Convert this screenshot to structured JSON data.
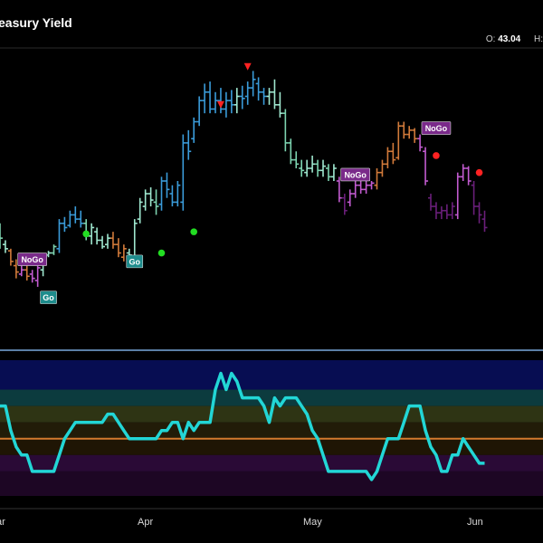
{
  "title": "easury Yield",
  "ohlc": {
    "o_label": "O:",
    "o_value": "43.04",
    "h_label": "H:"
  },
  "colors": {
    "background": "#000000",
    "strong_go": "#3a9bd9",
    "go": "#7dd3b0",
    "weak_go": "#9fe7cf",
    "nogo": "#c25bd0",
    "strong_nogo": "#6a1f7a",
    "amber": "#d17a3a",
    "oscillator": "#22d6d6",
    "zero_line": "#d47a2e",
    "separator": "#5b7fa6",
    "go_dot": "#22dd22",
    "nogo_dot": "#ff2222",
    "badge_go": "#1e8c8c",
    "badge_nogo": "#7a2a8a"
  },
  "chart_data": [
    {
      "type": "ohlc",
      "panel": "price",
      "x_ticks": [
        "ar",
        "Apr",
        "May",
        "Jun"
      ],
      "bars": [
        {
          "h": 51.0,
          "l": 45.0,
          "o": 49.5,
          "c": 47.5,
          "color": "go"
        },
        {
          "h": 47.0,
          "l": 44.0,
          "o": 46.0,
          "c": 45.0,
          "color": "weak_go"
        },
        {
          "h": 45.0,
          "l": 41.0,
          "o": 44.5,
          "c": 42.0,
          "color": "amber"
        },
        {
          "h": 42.5,
          "l": 38.0,
          "o": 41.0,
          "c": 39.5,
          "color": "amber"
        },
        {
          "h": 41.0,
          "l": 38.5,
          "o": 39.0,
          "c": 40.0,
          "color": "nogo"
        },
        {
          "h": 41.5,
          "l": 37.5,
          "o": 40.0,
          "c": 38.5,
          "color": "amber"
        },
        {
          "h": 40.0,
          "l": 37.0,
          "o": 39.0,
          "c": 38.0,
          "color": "nogo"
        },
        {
          "h": 41.0,
          "l": 36.0,
          "o": 37.5,
          "c": 40.5,
          "color": "nogo"
        },
        {
          "h": 43.0,
          "l": 38.5,
          "o": 40.0,
          "c": 42.5,
          "color": "weak_go"
        },
        {
          "h": 44.5,
          "l": 43.0,
          "o": 43.5,
          "c": 44.0,
          "color": "weak_go"
        },
        {
          "h": 46.0,
          "l": 43.5,
          "o": 44.0,
          "c": 45.5,
          "color": "go"
        },
        {
          "h": 52.0,
          "l": 44.0,
          "o": 45.0,
          "c": 51.0,
          "color": "strong_go"
        },
        {
          "h": 52.5,
          "l": 49.0,
          "o": 51.0,
          "c": 50.0,
          "color": "strong_go"
        },
        {
          "h": 54.0,
          "l": 50.0,
          "o": 50.5,
          "c": 53.0,
          "color": "strong_go"
        },
        {
          "h": 55.0,
          "l": 51.0,
          "o": 53.0,
          "c": 52.0,
          "color": "strong_go"
        },
        {
          "h": 54.0,
          "l": 50.0,
          "o": 52.0,
          "c": 51.0,
          "color": "strong_go"
        },
        {
          "h": 52.0,
          "l": 47.0,
          "o": 51.0,
          "c": 48.0,
          "color": "go"
        },
        {
          "h": 51.0,
          "l": 46.0,
          "o": 48.0,
          "c": 50.0,
          "color": "weak_go"
        },
        {
          "h": 50.0,
          "l": 46.0,
          "o": 49.0,
          "c": 47.0,
          "color": "weak_go"
        },
        {
          "h": 48.0,
          "l": 45.0,
          "o": 47.0,
          "c": 45.5,
          "color": "weak_go"
        },
        {
          "h": 48.5,
          "l": 45.0,
          "o": 46.0,
          "c": 47.5,
          "color": "weak_go"
        },
        {
          "h": 49.0,
          "l": 45.0,
          "o": 47.5,
          "c": 46.0,
          "color": "amber"
        },
        {
          "h": 47.5,
          "l": 43.0,
          "o": 46.0,
          "c": 44.0,
          "color": "amber"
        },
        {
          "h": 46.0,
          "l": 42.0,
          "o": 43.0,
          "c": 45.0,
          "color": "amber"
        },
        {
          "h": 45.0,
          "l": 42.5,
          "o": 44.0,
          "c": 43.5,
          "color": "weak_go"
        },
        {
          "h": 52.0,
          "l": 42.0,
          "o": 43.0,
          "c": 51.0,
          "color": "weak_go"
        },
        {
          "h": 57.0,
          "l": 51.0,
          "o": 52.0,
          "c": 56.0,
          "color": "weak_go"
        },
        {
          "h": 59.0,
          "l": 54.0,
          "o": 55.0,
          "c": 58.0,
          "color": "weak_go"
        },
        {
          "h": 59.5,
          "l": 55.0,
          "o": 58.0,
          "c": 56.5,
          "color": "weak_go"
        },
        {
          "h": 59.0,
          "l": 53.0,
          "o": 56.0,
          "c": 55.0,
          "color": "go"
        },
        {
          "h": 62.0,
          "l": 54.0,
          "o": 55.5,
          "c": 61.0,
          "color": "strong_go"
        },
        {
          "h": 63.0,
          "l": 57.0,
          "o": 61.0,
          "c": 59.0,
          "color": "strong_go"
        },
        {
          "h": 60.0,
          "l": 55.0,
          "o": 58.0,
          "c": 56.0,
          "color": "strong_go"
        },
        {
          "h": 61.0,
          "l": 55.0,
          "o": 56.0,
          "c": 60.0,
          "color": "strong_go"
        },
        {
          "h": 72.0,
          "l": 54.0,
          "o": 56.0,
          "c": 70.0,
          "color": "strong_go"
        },
        {
          "h": 73.0,
          "l": 66.0,
          "o": 70.0,
          "c": 68.0,
          "color": "strong_go"
        },
        {
          "h": 76.0,
          "l": 70.0,
          "o": 71.0,
          "c": 75.0,
          "color": "strong_go"
        },
        {
          "h": 81.0,
          "l": 74.0,
          "o": 75.0,
          "c": 80.0,
          "color": "strong_go"
        },
        {
          "h": 84.0,
          "l": 77.0,
          "o": 80.0,
          "c": 82.0,
          "color": "strong_go"
        },
        {
          "h": 84.5,
          "l": 77.0,
          "o": 82.0,
          "c": 78.0,
          "color": "strong_go"
        },
        {
          "h": 82.0,
          "l": 77.0,
          "o": 78.0,
          "c": 80.0,
          "color": "strong_go"
        },
        {
          "h": 83.0,
          "l": 77.0,
          "o": 80.0,
          "c": 78.0,
          "color": "strong_go"
        },
        {
          "h": 82.0,
          "l": 76.0,
          "o": 78.0,
          "c": 80.0,
          "color": "strong_go"
        },
        {
          "h": 82.5,
          "l": 77.0,
          "o": 80.0,
          "c": 79.0,
          "color": "strong_go"
        },
        {
          "h": 83.0,
          "l": 77.0,
          "o": 79.0,
          "c": 81.0,
          "color": "weak_go"
        },
        {
          "h": 83.5,
          "l": 78.0,
          "o": 81.0,
          "c": 80.5,
          "color": "strong_go"
        },
        {
          "h": 84.5,
          "l": 79.0,
          "o": 81.0,
          "c": 83.0,
          "color": "strong_go"
        },
        {
          "h": 87.0,
          "l": 81.0,
          "o": 83.0,
          "c": 85.0,
          "color": "strong_go"
        },
        {
          "h": 85.5,
          "l": 80.0,
          "o": 84.0,
          "c": 82.0,
          "color": "strong_go"
        },
        {
          "h": 83.0,
          "l": 79.0,
          "o": 82.0,
          "c": 81.0,
          "color": "strong_go"
        },
        {
          "h": 83.0,
          "l": 79.0,
          "o": 81.0,
          "c": 82.0,
          "color": "weak_go"
        },
        {
          "h": 85.0,
          "l": 78.0,
          "o": 82.0,
          "c": 79.0,
          "color": "weak_go"
        },
        {
          "h": 82.0,
          "l": 76.0,
          "o": 79.0,
          "c": 77.0,
          "color": "weak_go"
        },
        {
          "h": 78.0,
          "l": 68.0,
          "o": 77.0,
          "c": 70.0,
          "color": "go"
        },
        {
          "h": 71.0,
          "l": 65.0,
          "o": 70.0,
          "c": 66.0,
          "color": "go"
        },
        {
          "h": 68.0,
          "l": 64.0,
          "o": 66.0,
          "c": 65.0,
          "color": "go"
        },
        {
          "h": 66.0,
          "l": 62.0,
          "o": 64.0,
          "c": 63.5,
          "color": "go"
        },
        {
          "h": 66.0,
          "l": 62.0,
          "o": 63.0,
          "c": 64.0,
          "color": "weak_go"
        },
        {
          "h": 67.0,
          "l": 63.0,
          "o": 64.0,
          "c": 65.0,
          "color": "weak_go"
        },
        {
          "h": 66.0,
          "l": 62.0,
          "o": 65.0,
          "c": 63.5,
          "color": "go"
        },
        {
          "h": 66.0,
          "l": 62.0,
          "o": 63.5,
          "c": 64.5,
          "color": "weak_go"
        },
        {
          "h": 65.0,
          "l": 61.0,
          "o": 64.0,
          "c": 62.0,
          "color": "go"
        },
        {
          "h": 65.0,
          "l": 61.0,
          "o": 62.0,
          "c": 64.0,
          "color": "weak_go"
        },
        {
          "h": 62.0,
          "l": 56.0,
          "o": 61.0,
          "c": 57.0,
          "color": "nogo"
        },
        {
          "h": 58.0,
          "l": 53.0,
          "o": 57.0,
          "c": 54.0,
          "color": "strong_nogo"
        },
        {
          "h": 59.0,
          "l": 55.0,
          "o": 56.0,
          "c": 58.0,
          "color": "nogo"
        },
        {
          "h": 61.0,
          "l": 57.0,
          "o": 58.0,
          "c": 60.0,
          "color": "nogo"
        },
        {
          "h": 61.5,
          "l": 58.0,
          "o": 60.0,
          "c": 59.0,
          "color": "nogo"
        },
        {
          "h": 61.0,
          "l": 58.0,
          "o": 59.0,
          "c": 60.0,
          "color": "nogo"
        },
        {
          "h": 61.0,
          "l": 59.0,
          "o": 60.0,
          "c": 60.5,
          "color": "nogo"
        },
        {
          "h": 64.0,
          "l": 59.0,
          "o": 60.0,
          "c": 63.0,
          "color": "amber"
        },
        {
          "h": 66.0,
          "l": 62.0,
          "o": 63.0,
          "c": 65.0,
          "color": "amber"
        },
        {
          "h": 69.0,
          "l": 64.0,
          "o": 65.0,
          "c": 68.0,
          "color": "amber"
        },
        {
          "h": 70.0,
          "l": 65.0,
          "o": 68.0,
          "c": 66.0,
          "color": "amber"
        },
        {
          "h": 75.0,
          "l": 66.0,
          "o": 66.5,
          "c": 74.0,
          "color": "amber"
        },
        {
          "h": 75.0,
          "l": 71.0,
          "o": 74.0,
          "c": 72.0,
          "color": "amber"
        },
        {
          "h": 74.0,
          "l": 71.0,
          "o": 72.0,
          "c": 73.0,
          "color": "amber"
        },
        {
          "h": 73.5,
          "l": 70.0,
          "o": 73.0,
          "c": 71.0,
          "color": "amber"
        },
        {
          "h": 72.0,
          "l": 68.0,
          "o": 71.0,
          "c": 69.0,
          "color": "nogo"
        },
        {
          "h": 69.0,
          "l": 60.0,
          "o": 68.0,
          "c": 61.0,
          "color": "nogo"
        },
        {
          "h": 58.0,
          "l": 54.0,
          "o": 57.0,
          "c": 55.0,
          "color": "strong_nogo"
        },
        {
          "h": 56.0,
          "l": 52.0,
          "o": 55.0,
          "c": 53.5,
          "color": "strong_nogo"
        },
        {
          "h": 55.0,
          "l": 52.0,
          "o": 53.5,
          "c": 54.0,
          "color": "strong_nogo"
        },
        {
          "h": 55.5,
          "l": 52.0,
          "o": 54.0,
          "c": 53.0,
          "color": "strong_nogo"
        },
        {
          "h": 56.0,
          "l": 52.0,
          "o": 53.0,
          "c": 55.0,
          "color": "strong_nogo"
        },
        {
          "h": 63.0,
          "l": 52.0,
          "o": 53.0,
          "c": 62.0,
          "color": "nogo"
        },
        {
          "h": 65.0,
          "l": 61.0,
          "o": 62.0,
          "c": 64.0,
          "color": "nogo"
        },
        {
          "h": 64.5,
          "l": 60.0,
          "o": 64.0,
          "c": 61.0,
          "color": "nogo"
        },
        {
          "h": 61.0,
          "l": 53.0,
          "o": 60.0,
          "c": 55.0,
          "color": "strong_nogo"
        },
        {
          "h": 56.0,
          "l": 51.0,
          "o": 55.0,
          "c": 53.0,
          "color": "strong_nogo"
        },
        {
          "h": 54.0,
          "l": 49.0,
          "o": 52.0,
          "c": 50.0,
          "color": "strong_nogo"
        }
      ],
      "go_dots": [
        {
          "bar": 16,
          "value": 48.5
        },
        {
          "bar": 30,
          "value": 44.0
        },
        {
          "bar": 36,
          "value": 49.0
        }
      ],
      "nogo_dots": [
        {
          "bar": 81,
          "value": 67.0
        },
        {
          "bar": 89,
          "value": 63.0
        }
      ],
      "nogo_triangles": [
        {
          "bar": 41,
          "value": 79.0
        },
        {
          "bar": 46,
          "value": 88.0
        }
      ],
      "labels": [
        {
          "text": "NoGo",
          "bar": 6,
          "value": 42.5,
          "kind": "nogo"
        },
        {
          "text": "Go",
          "bar": 9,
          "value": 33.5,
          "kind": "go"
        },
        {
          "text": "Go",
          "bar": 25,
          "value": 42.0,
          "kind": "go"
        },
        {
          "text": "NoGo",
          "bar": 66,
          "value": 62.5,
          "kind": "nogo"
        },
        {
          "text": "NoGo",
          "bar": 81,
          "value": 73.5,
          "kind": "nogo"
        }
      ]
    },
    {
      "type": "line",
      "panel": "oscillator",
      "series": [
        {
          "values": [
            2.0,
            2.0,
            0.5,
            -0.5,
            -1.0,
            -1.0,
            -2.0,
            -2.0,
            -2.0,
            -2.0,
            -2.0,
            -1.0,
            0.0,
            0.5,
            1.0,
            1.0,
            1.0,
            1.0,
            1.0,
            1.0,
            1.5,
            1.5,
            1.0,
            0.5,
            0.0,
            0.0,
            0.0,
            0.0,
            0.0,
            0.0,
            0.5,
            0.5,
            1.0,
            1.0,
            0.0,
            1.0,
            0.5,
            1.0,
            1.0,
            1.0,
            3.0,
            4.0,
            3.0,
            4.0,
            3.5,
            2.5,
            2.5,
            2.5,
            2.5,
            2.0,
            1.0,
            2.5,
            2.0,
            2.5,
            2.5,
            2.5,
            2.0,
            1.5,
            0.5,
            0.0,
            -1.0,
            -2.0,
            -2.0,
            -2.0,
            -2.0,
            -2.0,
            -2.0,
            -2.0,
            -2.0,
            -2.5,
            -2.0,
            -1.0,
            0.0,
            0.0,
            0.0,
            1.0,
            2.0,
            2.0,
            2.0,
            0.5,
            -0.5,
            -1.0,
            -2.0,
            -2.0,
            -1.0,
            -1.0,
            0.0,
            -0.5,
            -1.0,
            -1.5,
            -1.5
          ]
        }
      ],
      "ylim": [
        -3.5,
        4.8
      ],
      "zero_line": 0,
      "bands": [
        {
          "from": 3.0,
          "to": 4.8,
          "color": "#070d52"
        },
        {
          "from": 2.0,
          "to": 3.0,
          "color": "#0c3b3e"
        },
        {
          "from": 1.0,
          "to": 2.0,
          "color": "#2e3414"
        },
        {
          "from": 0.0,
          "to": 1.0,
          "color": "#221c08"
        },
        {
          "from": -1.0,
          "to": 0.0,
          "color": "#1f1504"
        },
        {
          "from": -2.0,
          "to": -1.0,
          "color": "#2a0a36"
        },
        {
          "from": -3.5,
          "to": -2.0,
          "color": "#1d0624"
        }
      ]
    }
  ]
}
